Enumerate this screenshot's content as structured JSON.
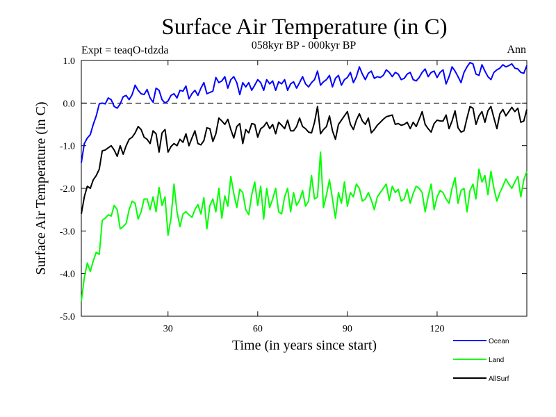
{
  "chart_data": {
    "type": "line",
    "title": "Surface Air Temperature (in C)",
    "subtitle": "058kyr BP - 000kyr BP",
    "experiment_label": "Expt = teaqO-tdzda",
    "period_label": "Ann",
    "xlabel": "Time (in years since start)",
    "ylabel": "Surface Air Temperature (in C)",
    "xlim": [
      1,
      150
    ],
    "ylim": [
      -5.0,
      1.0
    ],
    "x_ticks": [
      30,
      60,
      90,
      120
    ],
    "x_tick_labels": [
      "30",
      "60",
      "90",
      "120"
    ],
    "y_ticks": [
      1.0,
      0.0,
      -1.0,
      -2.0,
      -3.0,
      -4.0,
      -5.0
    ],
    "y_tick_labels": [
      "1.0",
      "0.0",
      "-1.0",
      "-2.0",
      "-3.0",
      "-4.0",
      "-5.0"
    ],
    "reference_line": 0.0,
    "colors": {
      "Ocean": "#0000ff",
      "Land": "#00ff00",
      "AllSurf": "#000000"
    },
    "x": [
      1,
      2,
      3,
      4,
      5,
      6,
      7,
      8,
      9,
      10,
      11,
      12,
      13,
      14,
      15,
      16,
      17,
      18,
      19,
      20,
      21,
      22,
      23,
      24,
      25,
      26,
      27,
      28,
      29,
      30,
      31,
      32,
      33,
      34,
      35,
      36,
      37,
      38,
      39,
      40,
      41,
      42,
      43,
      44,
      45,
      46,
      47,
      48,
      49,
      50,
      51,
      52,
      53,
      54,
      55,
      56,
      57,
      58,
      59,
      60,
      61,
      62,
      63,
      64,
      65,
      66,
      67,
      68,
      69,
      70,
      71,
      72,
      73,
      74,
      75,
      76,
      77,
      78,
      79,
      80,
      81,
      82,
      83,
      84,
      85,
      86,
      87,
      88,
      89,
      90,
      91,
      92,
      93,
      94,
      95,
      96,
      97,
      98,
      99,
      100,
      101,
      102,
      103,
      104,
      105,
      106,
      107,
      108,
      109,
      110,
      111,
      112,
      113,
      114,
      115,
      116,
      117,
      118,
      119,
      120,
      121,
      122,
      123,
      124,
      125,
      126,
      127,
      128,
      129,
      130,
      131,
      132,
      133,
      134,
      135,
      136,
      137,
      138,
      139,
      140,
      141,
      142,
      143,
      144,
      145,
      146,
      147,
      148,
      149,
      150
    ],
    "series": [
      {
        "name": "Ocean",
        "values": [
          -1.4,
          -0.95,
          -0.82,
          -0.74,
          -0.5,
          -0.3,
          -0.02,
          0.0,
          -0.02,
          0.12,
          0.08,
          -0.08,
          -0.12,
          -0.02,
          0.15,
          0.18,
          0.08,
          0.2,
          0.42,
          0.3,
          0.22,
          0.2,
          0.32,
          0.12,
          0.02,
          0.35,
          0.3,
          0.08,
          0.0,
          0.05,
          0.18,
          0.22,
          0.12,
          0.3,
          0.28,
          0.4,
          0.1,
          0.22,
          0.3,
          0.18,
          0.35,
          0.48,
          0.22,
          0.25,
          0.28,
          0.6,
          0.48,
          0.52,
          0.62,
          0.35,
          0.55,
          0.62,
          0.48,
          0.2,
          0.48,
          0.38,
          0.48,
          0.3,
          0.42,
          0.55,
          0.48,
          0.3,
          0.55,
          0.45,
          0.52,
          0.3,
          0.5,
          0.45,
          0.55,
          0.3,
          0.45,
          0.5,
          0.35,
          0.48,
          0.62,
          0.45,
          0.38,
          0.48,
          0.55,
          0.75,
          0.42,
          0.5,
          0.55,
          0.65,
          0.38,
          0.58,
          0.65,
          0.42,
          0.55,
          0.6,
          0.72,
          0.48,
          0.62,
          0.85,
          0.68,
          0.55,
          0.7,
          0.75,
          0.58,
          0.62,
          0.6,
          0.65,
          0.78,
          0.72,
          0.62,
          0.72,
          0.68,
          0.55,
          0.58,
          0.68,
          0.72,
          0.55,
          0.52,
          0.6,
          0.72,
          0.8,
          0.62,
          0.72,
          0.75,
          0.6,
          0.72,
          0.78,
          0.45,
          0.62,
          0.85,
          0.75,
          0.62,
          0.48,
          0.72,
          0.85,
          0.95,
          0.92,
          0.68,
          0.65,
          0.9,
          0.75,
          0.62,
          0.55,
          0.72,
          0.78,
          0.82,
          0.9,
          0.85,
          0.88,
          0.92,
          0.82,
          0.8,
          0.72,
          0.7,
          0.88
        ]
      },
      {
        "name": "AllSurf",
        "values": [
          -2.6,
          -2.2,
          -1.95,
          -2.0,
          -1.8,
          -1.7,
          -1.55,
          -1.12,
          -1.1,
          -1.05,
          -1.0,
          -1.1,
          -1.25,
          -1.0,
          -1.2,
          -1.0,
          -0.85,
          -0.8,
          -0.7,
          -0.55,
          -0.62,
          -0.8,
          -0.85,
          -0.95,
          -0.65,
          -0.72,
          -1.15,
          -0.7,
          -0.62,
          -1.15,
          -1.02,
          -0.95,
          -1.0,
          -0.85,
          -0.92,
          -0.72,
          -1.0,
          -0.82,
          -0.65,
          -0.95,
          -0.98,
          -0.88,
          -0.58,
          -0.6,
          -0.9,
          -0.72,
          -0.35,
          -0.42,
          -0.5,
          -0.38,
          -0.62,
          -0.82,
          -0.55,
          -0.48,
          -0.95,
          -0.62,
          -0.7,
          -0.48,
          -0.5,
          -0.8,
          -0.6,
          -0.55,
          -0.45,
          -0.6,
          -0.5,
          -0.72,
          -0.45,
          -0.52,
          -0.6,
          -0.4,
          -0.65,
          -0.65,
          -0.55,
          -0.35,
          -0.55,
          -0.6,
          -0.68,
          -0.7,
          -0.45,
          -0.08,
          -0.72,
          -0.62,
          -0.55,
          -0.3,
          -0.65,
          -0.85,
          -0.5,
          -0.4,
          -0.3,
          -0.2,
          -0.5,
          -0.62,
          -0.4,
          -0.25,
          -0.42,
          -0.5,
          -0.35,
          -0.7,
          -0.62,
          -0.52,
          -0.45,
          -0.38,
          -0.32,
          -0.3,
          -0.28,
          -0.5,
          -0.48,
          -0.52,
          -0.5,
          -0.45,
          -0.6,
          -0.45,
          -0.55,
          -0.38,
          -0.2,
          -0.5,
          -0.6,
          -0.68,
          -0.48,
          -0.4,
          -0.42,
          -0.42,
          -0.28,
          -0.6,
          -0.42,
          -0.18,
          -0.58,
          -0.68,
          -0.65,
          -0.35,
          -0.08,
          -0.12,
          -0.5,
          -0.3,
          -0.2,
          -0.45,
          -0.18,
          -0.08,
          -0.35,
          -0.6,
          -0.25,
          -0.15,
          -0.3,
          -0.2,
          -0.1,
          -0.2,
          -0.12,
          -0.45,
          -0.42,
          -0.15
        ]
      },
      {
        "name": "Land",
        "values": [
          -4.65,
          -4.1,
          -3.75,
          -3.95,
          -3.7,
          -3.5,
          -3.55,
          -2.75,
          -2.7,
          -2.62,
          -2.65,
          -2.4,
          -2.5,
          -2.95,
          -2.9,
          -2.82,
          -2.5,
          -2.3,
          -2.35,
          -2.72,
          -2.55,
          -2.25,
          -2.25,
          -2.5,
          -2.2,
          -2.55,
          -1.98,
          -2.4,
          -2.2,
          -3.1,
          -2.7,
          -1.9,
          -2.55,
          -2.9,
          -2.6,
          -2.55,
          -2.62,
          -2.68,
          -2.5,
          -2.38,
          -2.6,
          -2.22,
          -2.95,
          -2.4,
          -2.25,
          -2.55,
          -2.0,
          -2.7,
          -2.18,
          -2.42,
          -1.72,
          -2.12,
          -2.45,
          -2.02,
          -2.1,
          -2.5,
          -2.62,
          -2.15,
          -1.85,
          -2.4,
          -1.95,
          -2.72,
          -2.0,
          -2.45,
          -2.25,
          -2.0,
          -2.55,
          -2.6,
          -2.2,
          -2.0,
          -2.55,
          -2.1,
          -2.4,
          -2.28,
          -2.05,
          -2.42,
          -2.3,
          -1.7,
          -2.25,
          -2.2,
          -1.15,
          -2.45,
          -2.15,
          -1.8,
          -2.25,
          -2.7,
          -2.1,
          -2.35,
          -1.85,
          -2.42,
          -2.1,
          -2.2,
          -1.9,
          -2.0,
          -2.3,
          -2.25,
          -2.1,
          -2.28,
          -2.5,
          -2.2,
          -2.1,
          -2.0,
          -1.9,
          -2.28,
          -1.95,
          -2.1,
          -2.02,
          -2.3,
          -2.25,
          -2.02,
          -2.35,
          -2.12,
          -1.95,
          -2.0,
          -2.1,
          -2.55,
          -2.2,
          -1.9,
          -2.5,
          -2.2,
          -2.05,
          -2.1,
          -2.25,
          -2.35,
          -2.0,
          -1.75,
          -2.35,
          -2.05,
          -2.0,
          -2.55,
          -2.05,
          -1.9,
          -2.25,
          -1.55,
          -1.85,
          -1.7,
          -2.15,
          -1.6,
          -2.0,
          -2.3,
          -2.1,
          -1.95,
          -1.78,
          -1.9,
          -2.0,
          -1.85,
          -1.72,
          -2.2,
          -1.8,
          -1.6
        ]
      }
    ],
    "legend": {
      "placement": "bottom-right",
      "entries": [
        "Ocean",
        "Land",
        "AllSurf"
      ]
    }
  }
}
